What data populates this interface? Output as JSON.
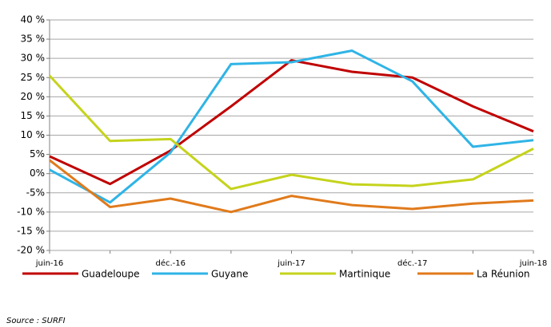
{
  "chart_data": {
    "type": "line",
    "categories": [
      "juin-16",
      null,
      "déc.-16",
      null,
      "juin-17",
      null,
      "déc.-17",
      null,
      "juin-18"
    ],
    "series": [
      {
        "name": "Guadeloupe",
        "color": "#c00000",
        "values": [
          4.5,
          -2.7,
          6,
          17.5,
          29.5,
          26.5,
          25,
          17.5,
          11
        ]
      },
      {
        "name": "Guyane",
        "color": "#2fb4e6",
        "values": [
          1,
          -7.5,
          5.5,
          28.5,
          29,
          32,
          24,
          7,
          8.7
        ]
      },
      {
        "name": "Martinique",
        "color": "#c5d31c",
        "values": [
          25.5,
          8.5,
          9,
          -4,
          -0.3,
          -2.8,
          -3.2,
          -1.5,
          6.5
        ]
      },
      {
        "name": "La Réunion",
        "color": "#e07a1b",
        "values": [
          3.5,
          -8.7,
          -6.5,
          -10,
          -5.8,
          -8.2,
          -9.2,
          -7.8,
          -7
        ]
      }
    ],
    "ylim": [
      -20,
      40
    ],
    "yticks": [
      {
        "value": -20,
        "label": "-20 %"
      },
      {
        "value": -15,
        "label": "-15 %"
      },
      {
        "value": -10,
        "label": "-10 %"
      },
      {
        "value": -5,
        "label": "-5%"
      },
      {
        "value": 0,
        "label": "0%"
      },
      {
        "value": 5,
        "label": "5%"
      },
      {
        "value": 10,
        "label": "10 %"
      },
      {
        "value": 15,
        "label": "15 %"
      },
      {
        "value": 20,
        "label": "20 %"
      },
      {
        "value": 25,
        "label": "25 %"
      },
      {
        "value": 30,
        "label": "30 %"
      },
      {
        "value": 35,
        "label": "35 %"
      },
      {
        "value": 40,
        "label": "40 %"
      }
    ],
    "grid": true,
    "source": "Source : SURFI"
  }
}
